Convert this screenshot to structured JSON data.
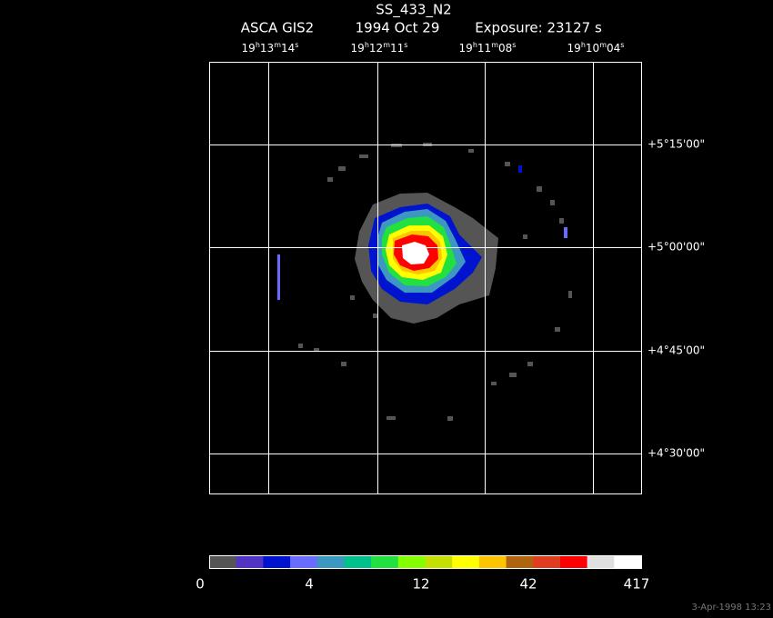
{
  "header": {
    "title": "SS_433_N2",
    "subtitle": [
      "ASCA GIS2",
      "1994 Oct 29",
      "Exposure: 23127 s"
    ]
  },
  "ra_labels": [
    [
      "19",
      "h",
      "13",
      "m",
      "14",
      "s"
    ],
    [
      "19",
      "h",
      "12",
      "m",
      "11",
      "s"
    ],
    [
      "19",
      "h",
      "11",
      "m",
      "08",
      "s"
    ],
    [
      "19",
      "h",
      "10",
      "m",
      "04",
      "s"
    ]
  ],
  "dec_labels": [
    "+5°15'00\"",
    "+5°00'00\"",
    "+4°45'00\"",
    "+4°30'00\""
  ],
  "colorbar": {
    "colors": [
      "#555555",
      "#5234c4",
      "#0014d0",
      "#6a6cff",
      "#3c98c0",
      "#00c08c",
      "#22e040",
      "#84ff00",
      "#c4e000",
      "#ffff00",
      "#ffc400",
      "#b06410",
      "#e03c20",
      "#ff0000",
      "#e0e0e0",
      "#ffffff"
    ],
    "labels": [
      "0",
      "4",
      "12",
      "42",
      "417"
    ]
  },
  "footer": {
    "timestamp": "3-Apr-1998 13:23"
  }
}
